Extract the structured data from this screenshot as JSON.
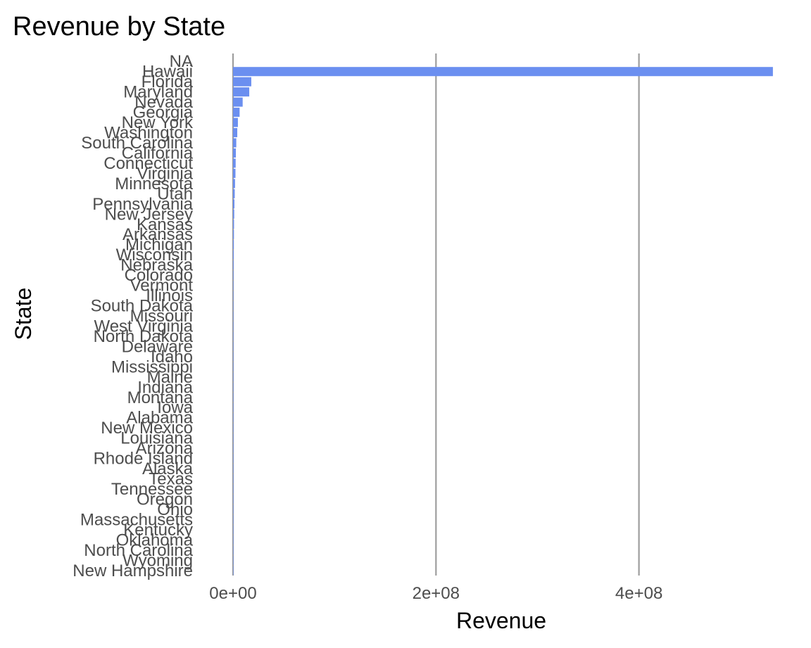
{
  "chart_data": {
    "type": "bar",
    "orientation": "horizontal",
    "title": "Revenue by State",
    "xlabel": "Revenue",
    "ylabel": "State",
    "xlim": [
      0,
      530000000
    ],
    "x_ticks": [
      0,
      200000000,
      400000000
    ],
    "x_tick_labels": [
      "0e+00",
      "2e+08",
      "4e+08"
    ],
    "grid": "vertical major lines",
    "legend": "none",
    "bar_color": "#6b8ff0",
    "categories": [
      "NA",
      "Hawaii",
      "Florida",
      "Maryland",
      "Nevada",
      "Georgia",
      "New York",
      "Washington",
      "South Carolina",
      "California",
      "Connecticut",
      "Virginia",
      "Minnesota",
      "Utah",
      "Pennsylvania",
      "New Jersey",
      "Kansas",
      "Arkansas",
      "Michigan",
      "Wisconsin",
      "Nebraska",
      "Colorado",
      "Vermont",
      "Illinois",
      "South Dakota",
      "Missouri",
      "West Virginia",
      "North Dakota",
      "Delaware",
      "Idaho",
      "Mississippi",
      "Maine",
      "Indiana",
      "Montana",
      "Iowa",
      "Alabama",
      "New Mexico",
      "Louisiana",
      "Arizona",
      "Rhode Island",
      "Alaska",
      "Texas",
      "Tennessee",
      "Oregon",
      "Ohio",
      "Massachusetts",
      "Kentucky",
      "Oklahoma",
      "North Carolina",
      "Wyoming",
      "New Hampshire"
    ],
    "values": [
      0,
      532000000,
      18000000,
      16000000,
      9500000,
      6500000,
      4800000,
      4200000,
      3200000,
      2800000,
      2600000,
      2400000,
      2000000,
      1700000,
      1400000,
      1200000,
      1000000,
      900000,
      800000,
      700000,
      600000,
      500000,
      450000,
      400000,
      350000,
      300000,
      250000,
      200000,
      180000,
      160000,
      140000,
      120000,
      100000,
      90000,
      80000,
      70000,
      60000,
      50000,
      45000,
      40000,
      35000,
      30000,
      25000,
      20000,
      15000,
      12000,
      10000,
      8000,
      6000,
      4000,
      2000
    ]
  }
}
